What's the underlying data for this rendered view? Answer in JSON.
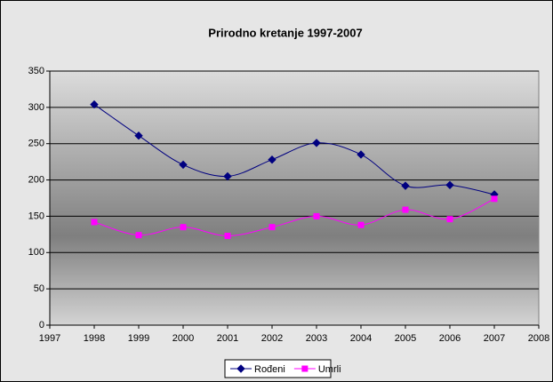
{
  "chart_data": {
    "type": "line",
    "title": "Prirodno kretanje 1997-2007",
    "x": [
      1998,
      1999,
      2000,
      2001,
      2002,
      2003,
      2004,
      2005,
      2006,
      2007
    ],
    "series": [
      {
        "name": "Rođeni",
        "color": "#000080",
        "marker": "diamond",
        "values": [
          304,
          261,
          221,
          205,
          228,
          251,
          235,
          192,
          193,
          180
        ]
      },
      {
        "name": "Umrli",
        "color": "#ff00ff",
        "marker": "square",
        "values": [
          142,
          124,
          135,
          123,
          135,
          150,
          138,
          159,
          146,
          174
        ]
      }
    ],
    "xlim": [
      1997,
      2008
    ],
    "xticks": [
      1997,
      1998,
      1999,
      2000,
      2001,
      2002,
      2003,
      2004,
      2005,
      2006,
      2007,
      2008
    ],
    "ylim": [
      0,
      350
    ],
    "yticks": [
      0,
      50,
      100,
      150,
      200,
      250,
      300,
      350
    ],
    "grid": true,
    "smooth": true,
    "legend": "bottom"
  }
}
